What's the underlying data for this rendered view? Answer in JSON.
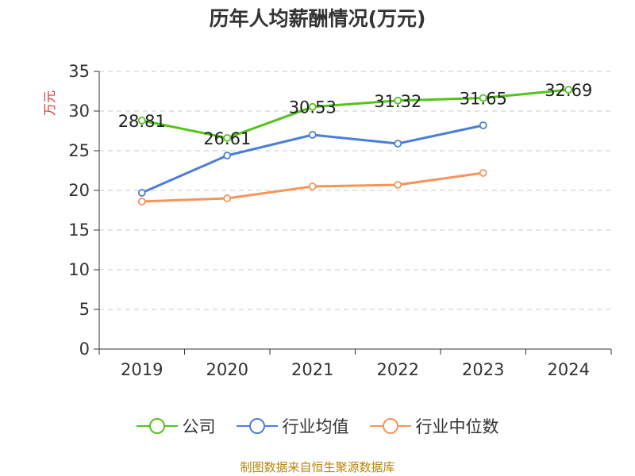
{
  "chart_data": {
    "type": "line",
    "title": "历年人均薪酬情况(万元)",
    "ylabel": "万元",
    "xlabel": "",
    "categories": [
      "2019",
      "2020",
      "2021",
      "2022",
      "2023",
      "2024"
    ],
    "ylim": [
      0,
      35
    ],
    "yticks": [
      0,
      5,
      10,
      15,
      20,
      25,
      30,
      35
    ],
    "grid": true,
    "legend_position": "bottom",
    "series": [
      {
        "name": "公司",
        "color": "#52c41a",
        "values": [
          28.81,
          26.61,
          30.53,
          31.32,
          31.65,
          32.69
        ],
        "labels": [
          "28.81",
          "26.61",
          "30.53",
          "31.32",
          "31.65",
          "32.69"
        ]
      },
      {
        "name": "行业均值",
        "color": "#4a7fd6",
        "values": [
          19.7,
          24.4,
          27.0,
          25.9,
          28.2,
          null
        ]
      },
      {
        "name": "行业中位数",
        "color": "#f5955a",
        "values": [
          18.6,
          19.0,
          20.5,
          20.7,
          22.2,
          null
        ]
      }
    ],
    "source": "制图数据来自恒生聚源数据库"
  }
}
